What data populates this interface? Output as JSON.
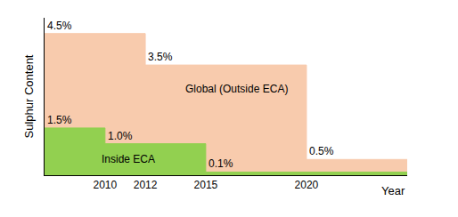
{
  "chart_data": {
    "type": "area",
    "ylabel": "Sulphur Content",
    "xlabel": "Year",
    "xlim": [
      2007,
      2025
    ],
    "xticks": [
      2010,
      2012,
      2015,
      2020
    ],
    "ylim": [
      0,
      5
    ],
    "yticks": [],
    "tick_labels": "x",
    "grid": false,
    "data_labels": true,
    "line_style": "step",
    "series": [
      {
        "name": "Global (Outside ECA)",
        "color": "#f8cbad",
        "x": [
          2007,
          2012,
          2020,
          2025
        ],
        "values": [
          4.5,
          3.5,
          0.5,
          0.5
        ],
        "value_labels": [
          "4.5%",
          "3.5%",
          "0.5%",
          null
        ]
      },
      {
        "name": "Inside ECA",
        "color": "#92d050",
        "x": [
          2007,
          2010,
          2015,
          2025
        ],
        "values": [
          1.5,
          1.0,
          0.1,
          0.1
        ],
        "value_labels": [
          "1.5%",
          "1.0%",
          "0.1%",
          null
        ]
      }
    ]
  }
}
